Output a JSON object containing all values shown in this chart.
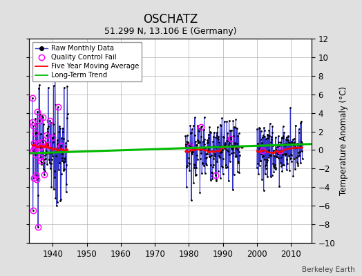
{
  "title": "OSCHATZ",
  "subtitle": "51.299 N, 13.106 E (Germany)",
  "ylabel": "Temperature Anomaly (°C)",
  "credit": "Berkeley Earth",
  "xlim": [
    1933,
    2016
  ],
  "ylim": [
    -10,
    12
  ],
  "yticks": [
    -10,
    -8,
    -6,
    -4,
    -2,
    0,
    2,
    4,
    6,
    8,
    10,
    12
  ],
  "xticks": [
    1940,
    1950,
    1960,
    1970,
    1980,
    1990,
    2000,
    2010
  ],
  "bg_color": "#e0e0e0",
  "plot_bg_color": "#ffffff",
  "grid_color": "#b0b0b0",
  "raw_line_color": "#3333cc",
  "raw_marker_color": "#000000",
  "qc_marker_color": "#ff00ff",
  "moving_avg_color": "#ff0000",
  "trend_color": "#00bb00",
  "trend_linewidth": 2.2,
  "moving_avg_linewidth": 1.5
}
